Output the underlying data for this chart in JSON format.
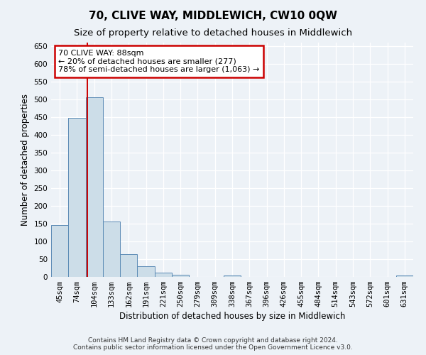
{
  "title": "70, CLIVE WAY, MIDDLEWICH, CW10 0QW",
  "subtitle": "Size of property relative to detached houses in Middlewich",
  "xlabel": "Distribution of detached houses by size in Middlewich",
  "ylabel": "Number of detached properties",
  "bar_labels": [
    "45sqm",
    "74sqm",
    "104sqm",
    "133sqm",
    "162sqm",
    "191sqm",
    "221sqm",
    "250sqm",
    "279sqm",
    "309sqm",
    "338sqm",
    "367sqm",
    "396sqm",
    "426sqm",
    "455sqm",
    "484sqm",
    "514sqm",
    "543sqm",
    "572sqm",
    "601sqm",
    "631sqm"
  ],
  "bar_values": [
    147,
    449,
    506,
    157,
    65,
    30,
    12,
    7,
    0,
    0,
    5,
    0,
    0,
    0,
    0,
    0,
    0,
    0,
    0,
    0,
    5
  ],
  "bar_color": "#ccdde8",
  "bar_edge_color": "#5a8ab5",
  "vline_x": 1.62,
  "vline_color": "#cc0000",
  "ylim": [
    0,
    660
  ],
  "yticks": [
    0,
    50,
    100,
    150,
    200,
    250,
    300,
    350,
    400,
    450,
    500,
    550,
    600,
    650
  ],
  "annotation_box_text_line1": "70 CLIVE WAY: 88sqm",
  "annotation_box_text_line2": "← 20% of detached houses are smaller (277)",
  "annotation_box_text_line3": "78% of semi-detached houses are larger (1,063) →",
  "annotation_box_color": "#cc0000",
  "footer_line1": "Contains HM Land Registry data © Crown copyright and database right 2024.",
  "footer_line2": "Contains public sector information licensed under the Open Government Licence v3.0.",
  "bg_color": "#edf2f7",
  "grid_color": "#ffffff",
  "title_fontsize": 11,
  "subtitle_fontsize": 9.5,
  "axis_label_fontsize": 8.5,
  "tick_fontsize": 7.5,
  "footer_fontsize": 6.5,
  "ann_fontsize": 8.0
}
